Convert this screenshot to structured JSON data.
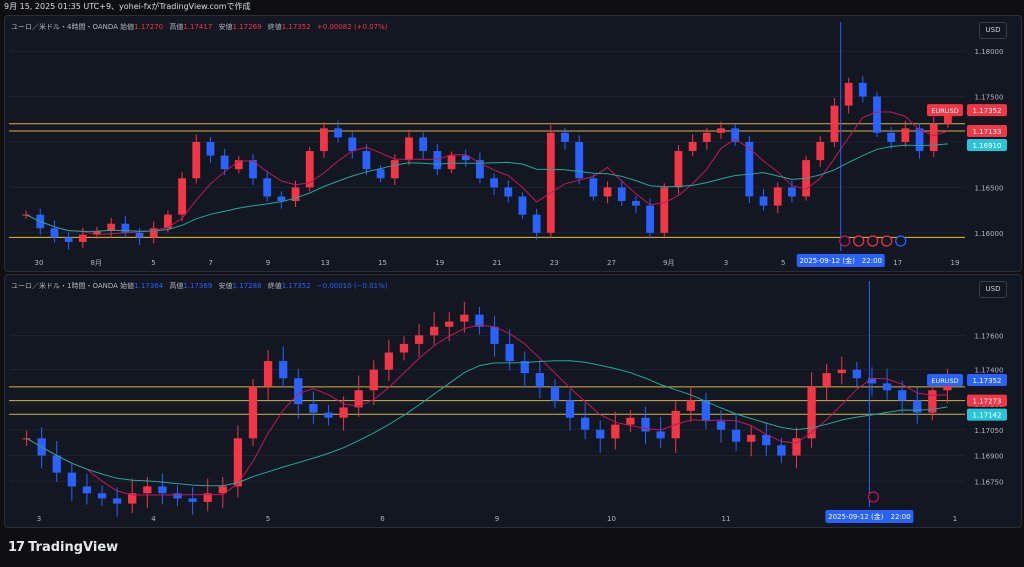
{
  "header": {
    "caption": "9月 15, 2025 01:35 UTC+9、yohei-fxがTradingView.comで作成"
  },
  "footer": {
    "brand": "TradingView"
  },
  "panes": [
    {
      "legend": {
        "title": "ユーロ／米ドル・4時間・OANDA",
        "open_label": "始値",
        "open": "1.17270",
        "high_label": "高値",
        "high": "1.17417",
        "low_label": "安値",
        "low": "1.17269",
        "close_label": "終値",
        "close": "1.17352",
        "change": "+0.00082 (+0.07%)",
        "change_color": "#f23645"
      },
      "currency": "USD",
      "price_ticks": [
        "1.18000",
        "1.17500",
        "1.17000",
        "1.16500",
        "1.16000"
      ],
      "date_ticks": [
        "30",
        "8月",
        "5",
        "7",
        "9",
        "13",
        "15",
        "19",
        "21",
        "23",
        "27",
        "9月",
        "3",
        "5",
        "9",
        "17",
        "19"
      ],
      "badges": [
        {
          "label": "EURUSD",
          "value": "1.17352",
          "color": "#f23645"
        },
        {
          "label": "",
          "value": "1.17133",
          "color": "#f23645"
        },
        {
          "label": "",
          "value": "1.16910",
          "color": "#26c6da"
        }
      ],
      "crosshair_label": "2025-09-12 (金)　22:00",
      "event_icons": [
        "lightning-icon",
        "flag-icon",
        "flag-icon",
        "flag-icon",
        "globe-icon"
      ]
    },
    {
      "legend": {
        "title": "ユーロ／米ドル・1時間・OANDA",
        "open_label": "始値",
        "open": "1.17364",
        "high_label": "高値",
        "high": "1.17369",
        "low_label": "安値",
        "low": "1.17288",
        "close_label": "終値",
        "close": "1.17352",
        "change": "−0.00010 (−0.01%)",
        "change_color": "#2962ff"
      },
      "currency": "USD",
      "price_ticks": [
        "1.17600",
        "1.17400",
        "1.17200",
        "1.17050",
        "1.16900",
        "1.16750"
      ],
      "date_ticks": [
        "3",
        "4",
        "5",
        "6",
        "9",
        "10",
        "11",
        "12",
        "1"
      ],
      "badges": [
        {
          "label": "EURUSD",
          "value": "1.17352",
          "color": "#2962ff"
        },
        {
          "label": "",
          "value": "1.17273",
          "color": "#f23645"
        },
        {
          "label": "",
          "value": "1.17142",
          "color": "#26c6da"
        }
      ],
      "crosshair_label": "2025-09-12 (金)　22:00",
      "event_icons": [
        "lightning-icon"
      ]
    }
  ],
  "chart_data": [
    {
      "type": "candlestick",
      "symbol": "EURUSD",
      "timeframe": "4時間",
      "ylim": [
        1.158,
        1.181
      ],
      "horizontal_levels": [
        1.172,
        1.1712,
        1.1595
      ],
      "close_series": [
        1.162,
        1.1605,
        1.1595,
        1.159,
        1.1598,
        1.1602,
        1.161,
        1.16,
        1.1595,
        1.1605,
        1.162,
        1.166,
        1.17,
        1.1685,
        1.167,
        1.168,
        1.166,
        1.164,
        1.1635,
        1.165,
        1.169,
        1.1715,
        1.1705,
        1.169,
        1.167,
        1.166,
        1.168,
        1.1705,
        1.169,
        1.167,
        1.1685,
        1.168,
        1.166,
        1.165,
        1.164,
        1.162,
        1.16,
        1.171,
        1.17,
        1.166,
        1.164,
        1.165,
        1.1635,
        1.163,
        1.16,
        1.165,
        1.169,
        1.17,
        1.171,
        1.1715,
        1.17,
        1.164,
        1.163,
        1.165,
        1.164,
        1.168,
        1.17,
        1.174,
        1.1765,
        1.175,
        1.171,
        1.17,
        1.1715,
        1.169,
        1.172,
        1.1735
      ]
    },
    {
      "type": "candlestick",
      "symbol": "EURUSD",
      "timeframe": "1時間",
      "ylim": [
        1.166,
        1.178
      ],
      "horizontal_levels": [
        1.173,
        1.1722,
        1.1714
      ],
      "close_series": [
        1.17,
        1.169,
        1.168,
        1.1672,
        1.1668,
        1.1665,
        1.1662,
        1.1668,
        1.1672,
        1.1668,
        1.1665,
        1.1663,
        1.1668,
        1.1672,
        1.17,
        1.173,
        1.1745,
        1.1735,
        1.172,
        1.1715,
        1.1712,
        1.1718,
        1.1728,
        1.174,
        1.175,
        1.1755,
        1.176,
        1.1765,
        1.1768,
        1.1772,
        1.1765,
        1.1755,
        1.1745,
        1.1738,
        1.173,
        1.1722,
        1.1712,
        1.1705,
        1.17,
        1.1708,
        1.1712,
        1.1704,
        1.17,
        1.1716,
        1.1722,
        1.171,
        1.1705,
        1.1698,
        1.1702,
        1.1696,
        1.169,
        1.17,
        1.173,
        1.1738,
        1.174,
        1.1735,
        1.1732,
        1.1728,
        1.1722,
        1.1715,
        1.1728,
        1.1734
      ]
    }
  ]
}
